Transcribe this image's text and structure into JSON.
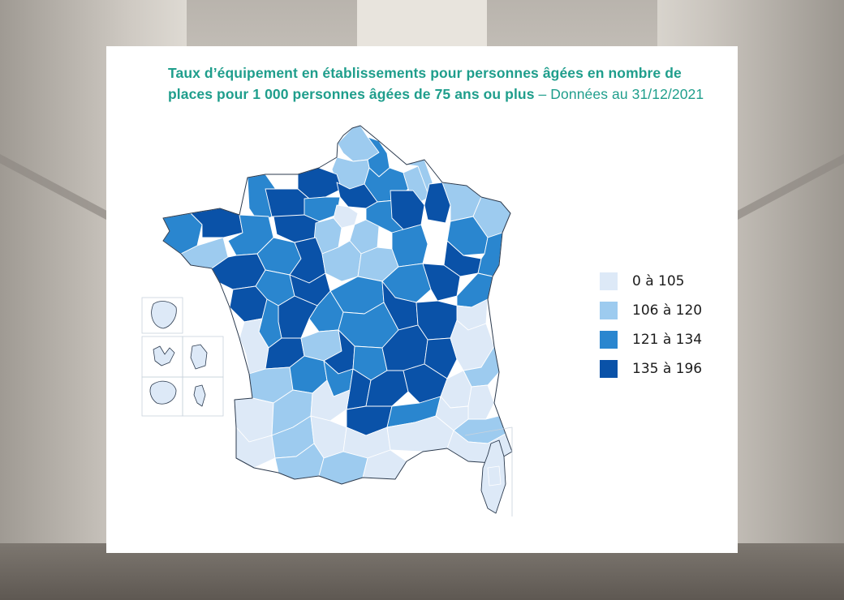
{
  "title": {
    "bold": "Taux d’équipement en établissements pour personnes âgées en nombre de places pour 1 000 personnes âgées de 75 ans ou plus",
    "normal": " – Données au 31/12/2021"
  },
  "legend": {
    "items": [
      {
        "label": "0 à 105",
        "color": "#dde9f7"
      },
      {
        "label": "106 à 120",
        "color": "#9dcbef"
      },
      {
        "label": "121 à 134",
        "color": "#2a86cf"
      },
      {
        "label": "135 à 196",
        "color": "#0a52a8"
      }
    ]
  },
  "colors": {
    "c1": "#dde9f7",
    "c2": "#9dcbef",
    "c3": "#2a86cf",
    "c4": "#0a52a8",
    "border": "#ffffff",
    "outline": "#2b3a4e"
  }
}
